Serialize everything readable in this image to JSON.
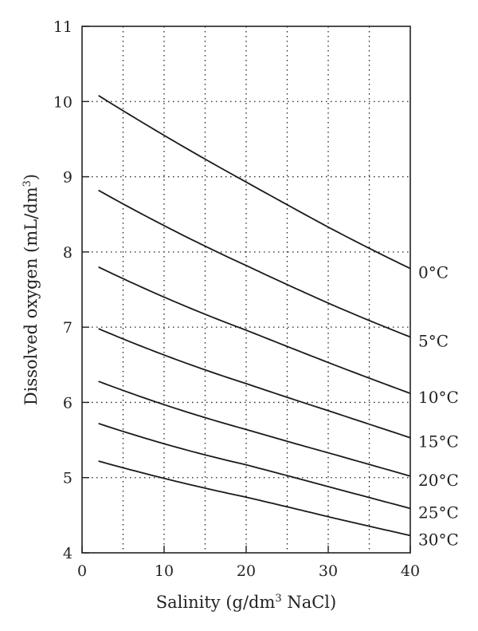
{
  "chart_data": {
    "type": "line",
    "xlabel_text": "Salinity (g/dm",
    "xlabel_sup": "3",
    "xlabel_tail": " NaCl)",
    "ylabel_text": "Dissolved oxygen (mL/dm",
    "ylabel_sup": "3",
    "ylabel_tail": ")",
    "xlim": [
      0,
      40
    ],
    "ylim": [
      4,
      11
    ],
    "xticks": [
      0,
      10,
      20,
      30,
      40
    ],
    "yticks": [
      4,
      5,
      6,
      7,
      8,
      9,
      10,
      11
    ],
    "x_grid": [
      5,
      10,
      15,
      20,
      25,
      30,
      35
    ],
    "y_grid": [
      5,
      6,
      7,
      8,
      9,
      10
    ],
    "grid": "dotted",
    "series": [
      {
        "name": "0°C",
        "x": [
          2,
          10,
          20,
          30,
          40
        ],
        "y": [
          10.08,
          9.55,
          8.93,
          8.33,
          7.78
        ]
      },
      {
        "name": "5°C",
        "x": [
          2,
          10,
          20,
          30,
          40
        ],
        "y": [
          8.82,
          8.35,
          7.82,
          7.32,
          6.87
        ]
      },
      {
        "name": "10°C",
        "x": [
          2,
          10,
          20,
          30,
          40
        ],
        "y": [
          7.8,
          7.4,
          6.96,
          6.53,
          6.12
        ]
      },
      {
        "name": "15°C",
        "x": [
          2,
          10,
          20,
          30,
          40
        ],
        "y": [
          6.98,
          6.63,
          6.25,
          5.89,
          5.53
        ]
      },
      {
        "name": "20°C",
        "x": [
          2,
          10,
          20,
          30,
          40
        ],
        "y": [
          6.28,
          5.97,
          5.64,
          5.33,
          5.02
        ]
      },
      {
        "name": "25°C",
        "x": [
          2,
          10,
          20,
          30,
          40
        ],
        "y": [
          5.72,
          5.45,
          5.17,
          4.88,
          4.59
        ]
      },
      {
        "name": "30°C",
        "x": [
          2,
          10,
          20,
          30,
          40
        ],
        "y": [
          5.22,
          4.99,
          4.74,
          4.48,
          4.23
        ]
      }
    ],
    "legend": "inline-right"
  }
}
